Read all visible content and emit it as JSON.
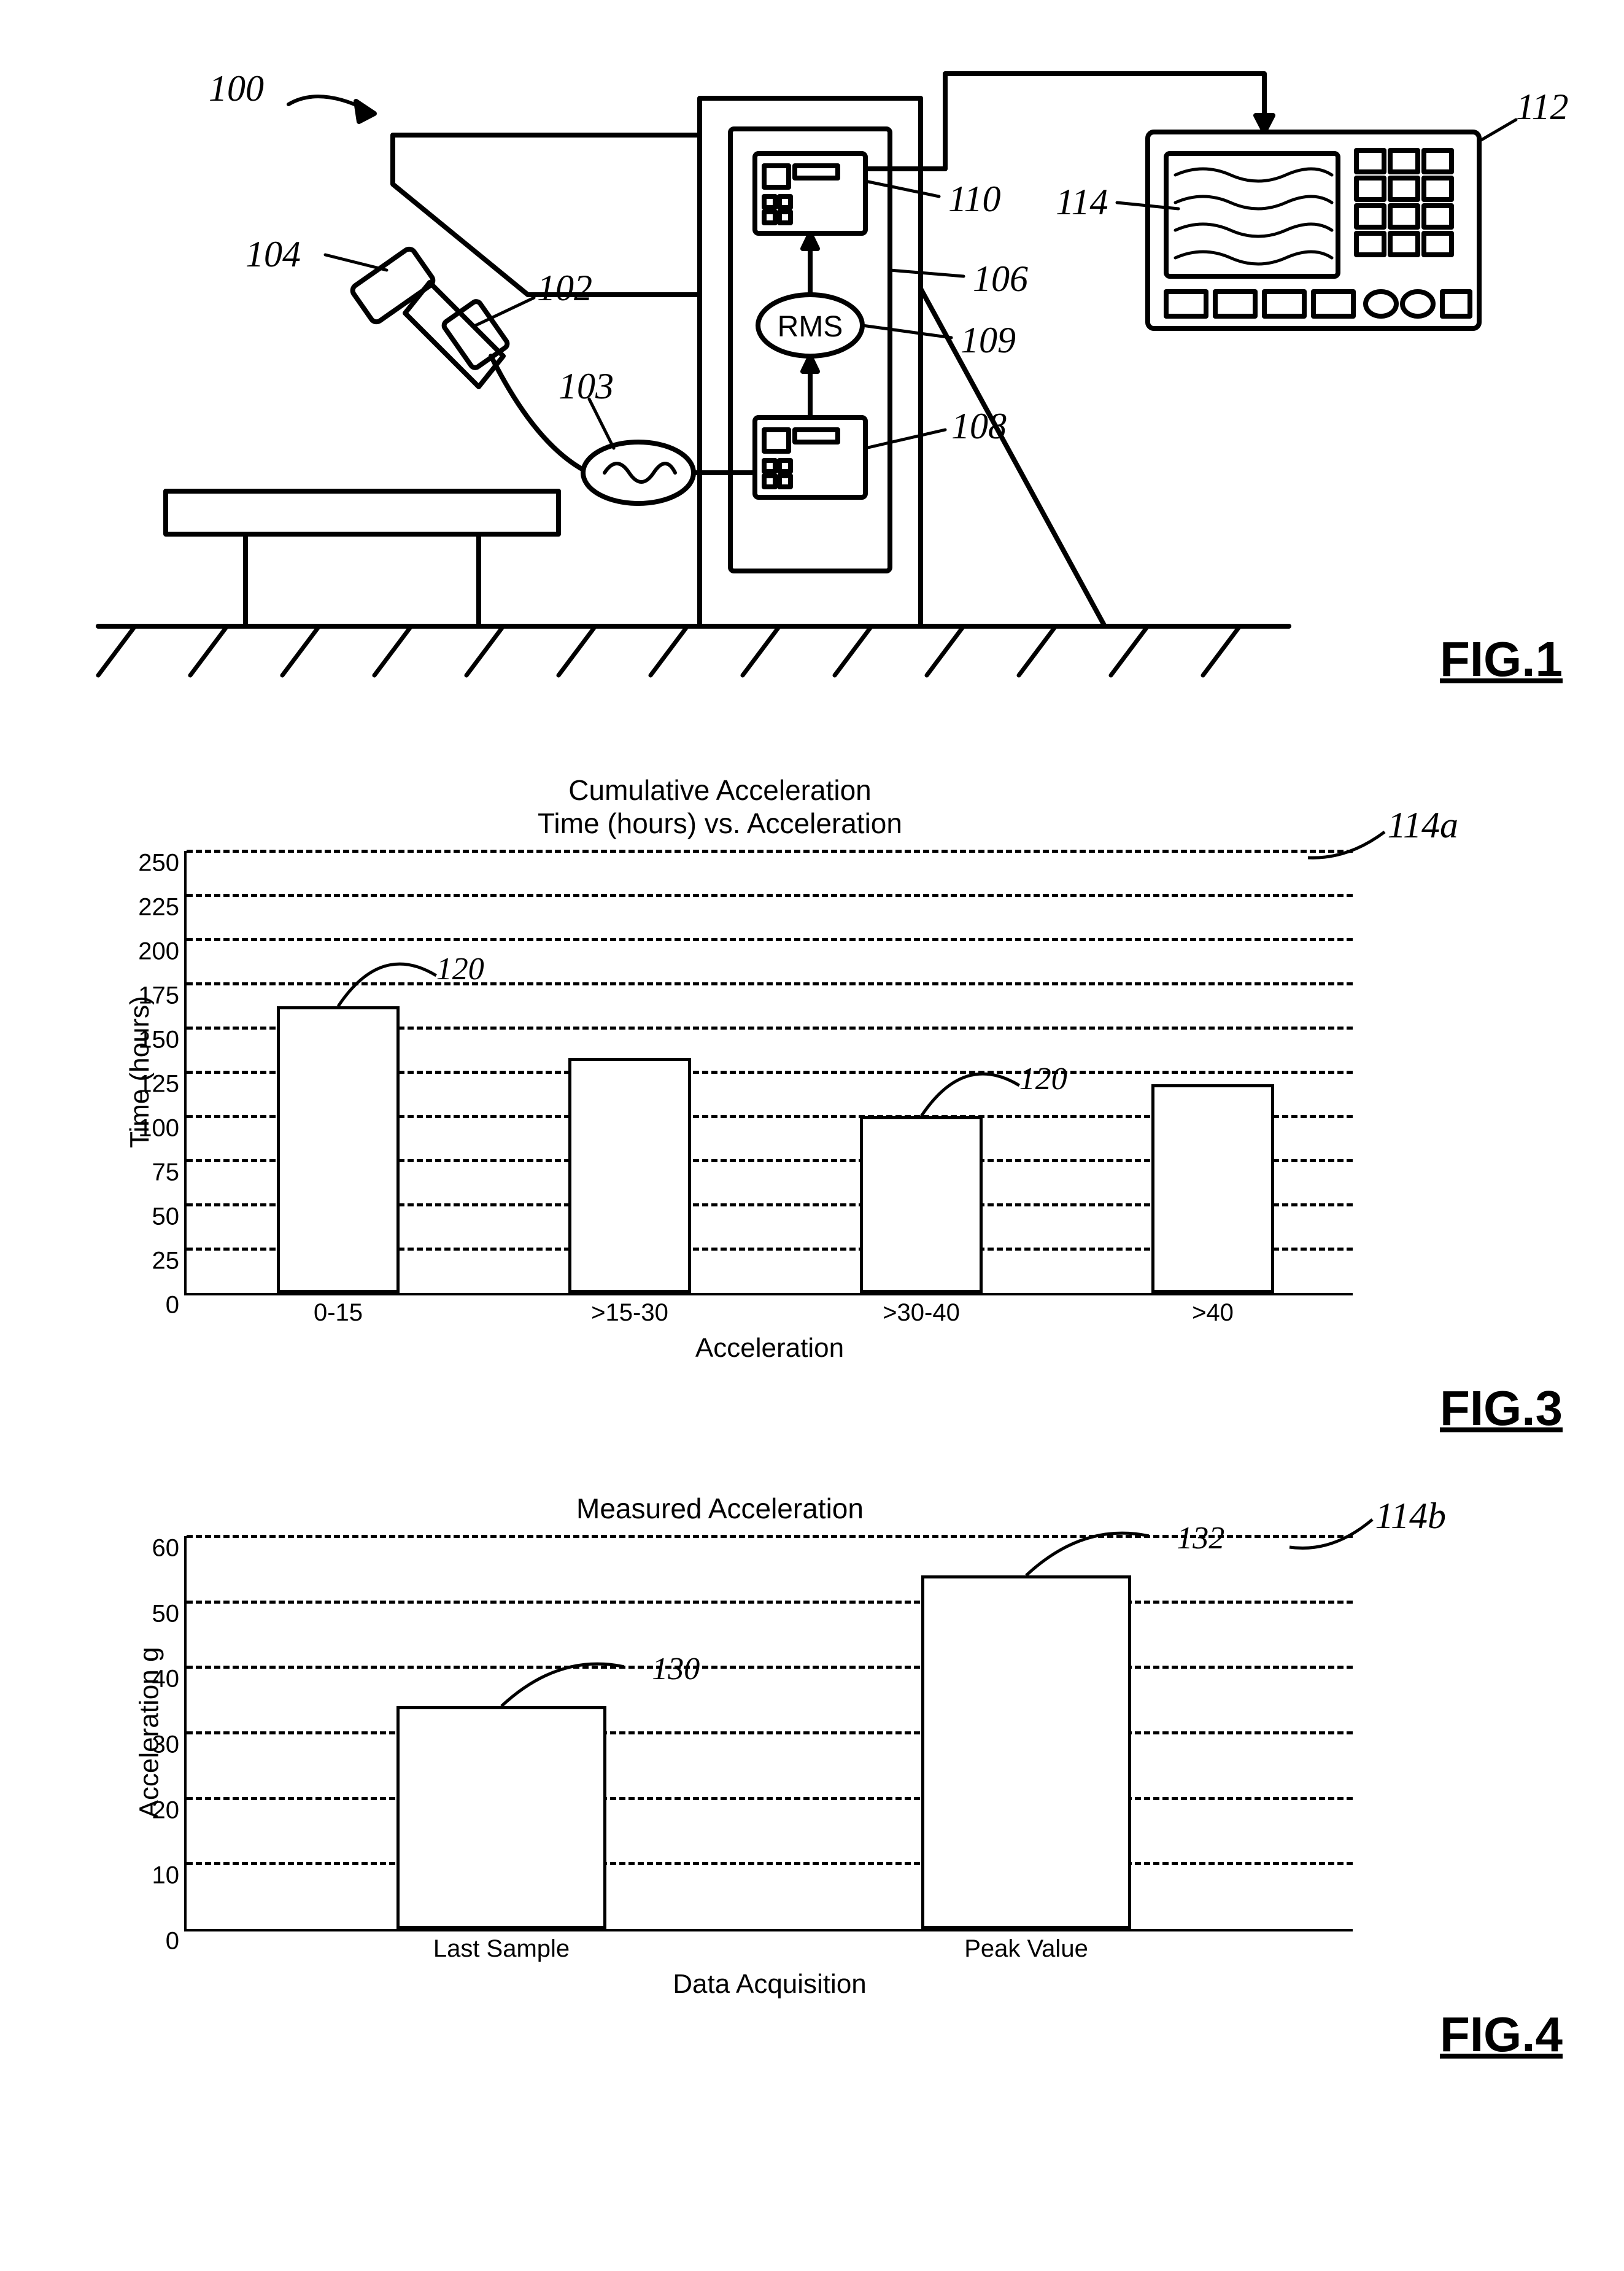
{
  "fig1": {
    "label": "FIG.1",
    "refs": {
      "r100": "100",
      "r102": "102",
      "r103": "103",
      "r104": "104",
      "r106": "106",
      "r108": "108",
      "r109": "109",
      "r110": "110",
      "r112": "112",
      "r114": "114",
      "rms": "RMS"
    }
  },
  "fig3": {
    "label": "FIG.3",
    "title_line1": "Cumulative Acceleration",
    "title_line2": "Time (hours) vs. Acceleration",
    "panel_ref": "114a",
    "ylabel": "Time (hours)",
    "xlabel": "Acceleration",
    "ylim": [
      0,
      250
    ],
    "ytick_step": 25,
    "yticks": [
      "0",
      "25",
      "50",
      "75",
      "100",
      "125",
      "150",
      "175",
      "200",
      "225",
      "250"
    ],
    "categories": [
      "0-15",
      ">15-30",
      ">30-40",
      ">40"
    ],
    "values": [
      162,
      133,
      100,
      118
    ],
    "bar_color": "#ffffff",
    "bar_border": "#000000",
    "grid_color": "#000000",
    "callouts": [
      {
        "text": "120",
        "bar_index": 0
      },
      {
        "text": "120",
        "bar_index": 2
      }
    ]
  },
  "fig4": {
    "label": "FIG.4",
    "title": "Measured Acceleration",
    "panel_ref": "114b",
    "ylabel": "Acceleration g",
    "xlabel": "Data Acquisition",
    "ylim": [
      0,
      60
    ],
    "ytick_step": 10,
    "yticks": [
      "0",
      "10",
      "20",
      "30",
      "40",
      "50",
      "60"
    ],
    "categories": [
      "Last Sample",
      "Peak Value"
    ],
    "values": [
      34,
      54
    ],
    "bar_color": "#ffffff",
    "bar_border": "#000000",
    "grid_color": "#000000",
    "callouts": [
      {
        "text": "130",
        "bar_index": 0
      },
      {
        "text": "132",
        "bar_index": 1
      }
    ]
  }
}
